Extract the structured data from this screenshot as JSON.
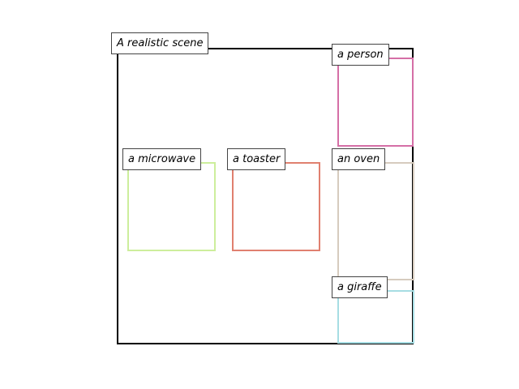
{
  "scene": {
    "caption": "A realistic scene"
  },
  "objects": [
    {
      "label": "a person",
      "color": "#d56fa6"
    },
    {
      "label": "a microwave",
      "color": "#cdee9c"
    },
    {
      "label": "a toaster",
      "color": "#e0806f"
    },
    {
      "label": "an oven",
      "color": "#d6cbbe"
    },
    {
      "label": "a giraffe",
      "color": "#a6dde3"
    }
  ]
}
